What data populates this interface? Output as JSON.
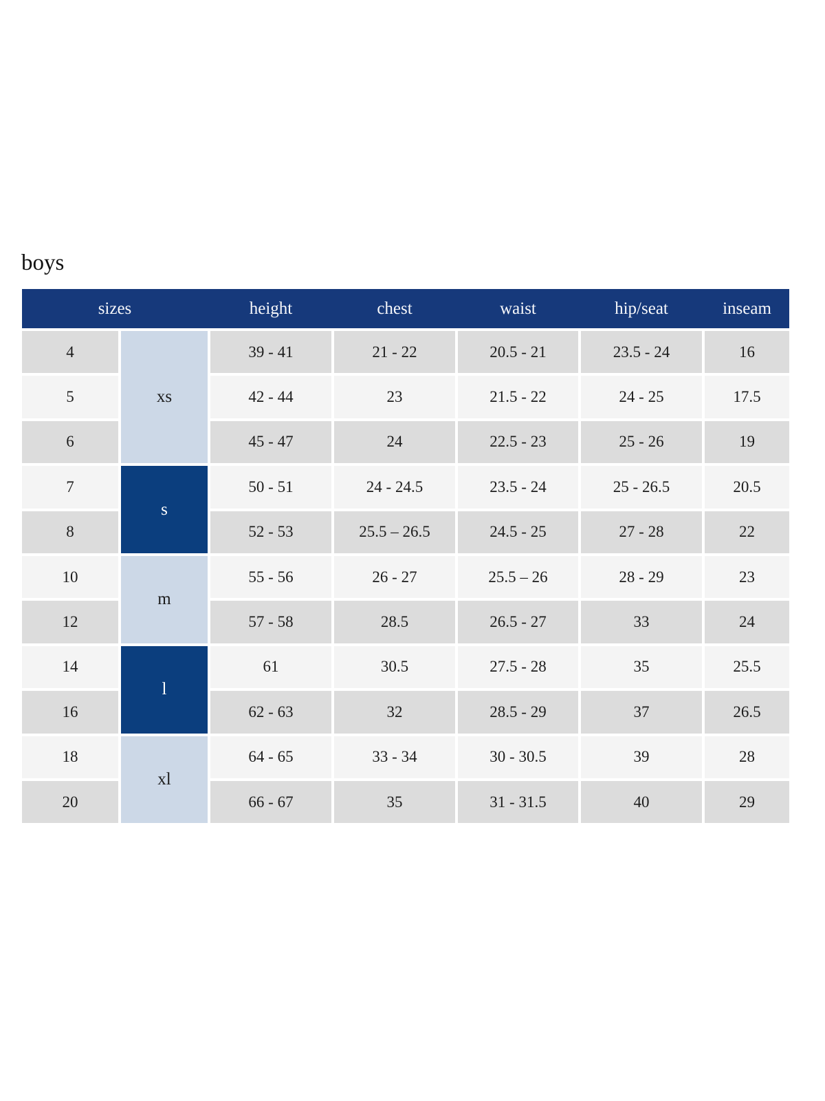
{
  "page": {
    "title": "boys"
  },
  "colors": {
    "header_bg": "#16397b",
    "group_dark_bg": "#0b3e7e",
    "group_light_bg": "#ccd8e7",
    "row_gray_bg": "#dcdcdc",
    "row_light_bg": "#f4f4f4",
    "header_text": "#ffffff",
    "body_text": "#1c1c1c"
  },
  "table": {
    "headers": [
      "sizes",
      "height",
      "chest",
      "waist",
      "hip/seat",
      "inseam"
    ],
    "groups": [
      {
        "label": "xs",
        "rows": 3,
        "style": "light"
      },
      {
        "label": "s",
        "rows": 2,
        "style": "dark"
      },
      {
        "label": "m",
        "rows": 2,
        "style": "light"
      },
      {
        "label": "l",
        "rows": 2,
        "style": "dark"
      },
      {
        "label": "xl",
        "rows": 2,
        "style": "light"
      }
    ],
    "rows": [
      {
        "size": "4",
        "height": "39 - 41",
        "chest": "21 - 22",
        "waist": "20.5 - 21",
        "hip_seat": "23.5 - 24",
        "inseam": "16"
      },
      {
        "size": "5",
        "height": "42 - 44",
        "chest": "23",
        "waist": "21.5 - 22",
        "hip_seat": "24 - 25",
        "inseam": "17.5"
      },
      {
        "size": "6",
        "height": "45 - 47",
        "chest": "24",
        "waist": "22.5 - 23",
        "hip_seat": "25 - 26",
        "inseam": "19"
      },
      {
        "size": "7",
        "height": "50 - 51",
        "chest": "24 - 24.5",
        "waist": "23.5 - 24",
        "hip_seat": "25 - 26.5",
        "inseam": "20.5"
      },
      {
        "size": "8",
        "height": "52 - 53",
        "chest": "25.5 – 26.5",
        "waist": "24.5 - 25",
        "hip_seat": "27 - 28",
        "inseam": "22"
      },
      {
        "size": "10",
        "height": "55 - 56",
        "chest": "26 - 27",
        "waist": "25.5 – 26",
        "hip_seat": "28 - 29",
        "inseam": "23"
      },
      {
        "size": "12",
        "height": "57 - 58",
        "chest": "28.5",
        "waist": "26.5 - 27",
        "hip_seat": "33",
        "inseam": "24"
      },
      {
        "size": "14",
        "height": "61",
        "chest": "30.5",
        "waist": "27.5 - 28",
        "hip_seat": "35",
        "inseam": "25.5"
      },
      {
        "size": "16",
        "height": "62 - 63",
        "chest": "32",
        "waist": "28.5 - 29",
        "hip_seat": "37",
        "inseam": "26.5"
      },
      {
        "size": "18",
        "height": "64 - 65",
        "chest": "33 - 34",
        "waist": "30 - 30.5",
        "hip_seat": "39",
        "inseam": "28"
      },
      {
        "size": "20",
        "height": "66 - 67",
        "chest": "35",
        "waist": "31 - 31.5",
        "hip_seat": "40",
        "inseam": "29"
      }
    ]
  }
}
